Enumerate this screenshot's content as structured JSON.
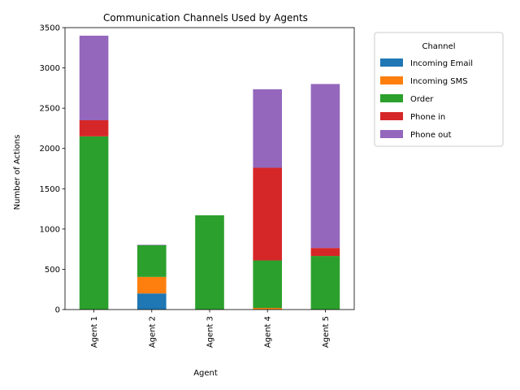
{
  "chart_data": {
    "type": "bar",
    "stacked": true,
    "title": "Communication Channels Used by Agents",
    "xlabel": "Agent",
    "ylabel": "Number of Actions",
    "categories": [
      "Agent 1",
      "Agent 2",
      "Agent 3",
      "Agent 4",
      "Agent 5"
    ],
    "ylim": [
      0,
      3500
    ],
    "yticks": [
      0,
      500,
      1000,
      1500,
      2000,
      2500,
      3000,
      3500
    ],
    "legend": {
      "title": "Channel",
      "placement": "outside-right-top"
    },
    "series": [
      {
        "name": "Incoming Email",
        "color": "#1f77b4",
        "values": [
          0,
          200,
          0,
          0,
          0
        ]
      },
      {
        "name": "Incoming SMS",
        "color": "#ff7f0e",
        "values": [
          0,
          205,
          0,
          20,
          0
        ]
      },
      {
        "name": "Order",
        "color": "#2ca02c",
        "values": [
          2150,
          395,
          1170,
          590,
          665
        ]
      },
      {
        "name": "Phone in",
        "color": "#d62728",
        "values": [
          200,
          0,
          0,
          1150,
          100
        ]
      },
      {
        "name": "Phone out",
        "color": "#9467bd",
        "values": [
          1050,
          5,
          0,
          975,
          2035
        ]
      }
    ]
  }
}
